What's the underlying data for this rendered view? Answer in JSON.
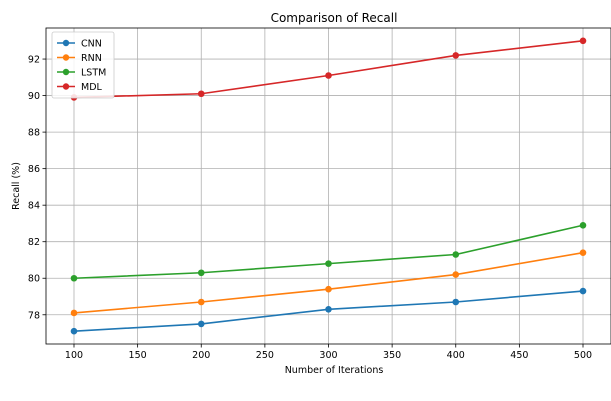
{
  "chart_data": {
    "type": "line",
    "title": "Comparison of Recall",
    "xlabel": "Number of Iterations",
    "ylabel": "Recall (%)",
    "x": [
      100,
      200,
      300,
      400,
      500
    ],
    "xlim": [
      78,
      522
    ],
    "ylim": [
      76.4,
      93.7
    ],
    "xticks": [
      100,
      150,
      200,
      250,
      300,
      350,
      400,
      450,
      500
    ],
    "yticks": [
      78,
      80,
      82,
      84,
      86,
      88,
      90,
      92
    ],
    "grid": true,
    "legend_position": "top-left",
    "series": [
      {
        "name": "CNN",
        "color": "#1f77b4",
        "values": [
          77.1,
          77.5,
          78.3,
          78.7,
          79.3
        ]
      },
      {
        "name": "RNN",
        "color": "#ff7f0e",
        "values": [
          78.1,
          78.7,
          79.4,
          80.2,
          81.4
        ]
      },
      {
        "name": "LSTM",
        "color": "#2ca02c",
        "values": [
          80.0,
          80.3,
          80.8,
          81.3,
          82.9
        ]
      },
      {
        "name": "MDL",
        "color": "#d62728",
        "values": [
          89.9,
          90.1,
          91.1,
          92.2,
          93.0
        ]
      }
    ]
  }
}
